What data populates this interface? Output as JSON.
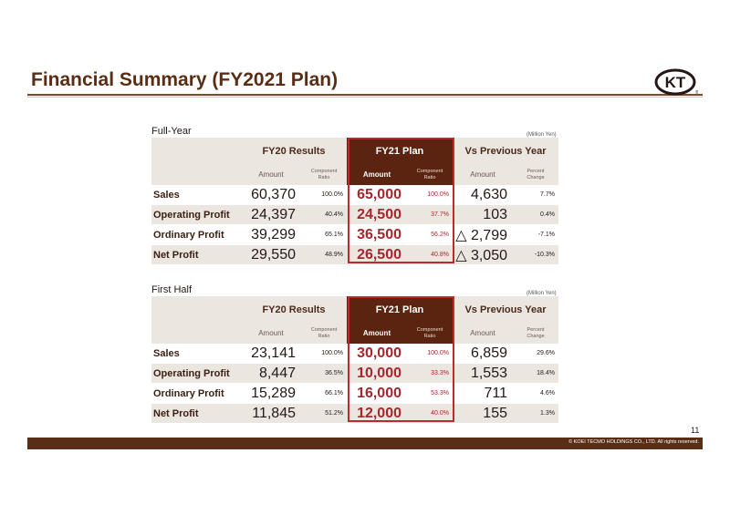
{
  "title": "Financial Summary (FY2021 Plan)",
  "logo_text": "KT",
  "page_number": "11",
  "footer": "© KOEI TECMO HOLDINGS CO., LTD. All rights reserved.",
  "colors": {
    "brand_brown": "#5a2e14",
    "plan_red": "#a6262e",
    "frame_red": "#c0282f",
    "header_shade": "#ece6e1"
  },
  "full_year": {
    "label": "Full-Year",
    "unit": "(Million Yen)",
    "groups": {
      "fy20": "FY20 Results",
      "fy21": "FY21 Plan",
      "vs": "Vs Previous Year"
    },
    "subs": {
      "amount": "Amount",
      "ratio_1": "Component",
      "ratio_2": "Ratio",
      "pct_1": "Percent",
      "pct_2": "Change"
    },
    "rows": [
      {
        "label": "Sales",
        "fy20_amount": "60,370",
        "fy20_ratio": "100.0%",
        "fy21_amount": "65,000",
        "fy21_ratio": "100.0%",
        "vs_amount": "4,630",
        "vs_pct": "7.7%"
      },
      {
        "label": "Operating Profit",
        "fy20_amount": "24,397",
        "fy20_ratio": "40.4%",
        "fy21_amount": "24,500",
        "fy21_ratio": "37.7%",
        "vs_amount": "103",
        "vs_pct": "0.4%"
      },
      {
        "label": "Ordinary Profit",
        "fy20_amount": "39,299",
        "fy20_ratio": "65.1%",
        "fy21_amount": "36,500",
        "fy21_ratio": "56.2%",
        "vs_amount": "△ 2,799",
        "vs_pct": "-7.1%"
      },
      {
        "label": "Net Profit",
        "fy20_amount": "29,550",
        "fy20_ratio": "48.9%",
        "fy21_amount": "26,500",
        "fy21_ratio": "40.8%",
        "vs_amount": "△ 3,050",
        "vs_pct": "-10.3%"
      }
    ]
  },
  "first_half": {
    "label": "First Half",
    "unit": "(Million Yen)",
    "groups": {
      "fy20": "FY20 Results",
      "fy21": "FY21 Plan",
      "vs": "Vs Previous Year"
    },
    "subs": {
      "amount": "Amount",
      "ratio_1": "Component",
      "ratio_2": "Ratio",
      "pct_1": "Percent",
      "pct_2": "Change"
    },
    "rows": [
      {
        "label": "Sales",
        "fy20_amount": "23,141",
        "fy20_ratio": "100.0%",
        "fy21_amount": "30,000",
        "fy21_ratio": "100.0%",
        "vs_amount": "6,859",
        "vs_pct": "29.6%"
      },
      {
        "label": "Operating Profit",
        "fy20_amount": "8,447",
        "fy20_ratio": "36.5%",
        "fy21_amount": "10,000",
        "fy21_ratio": "33.3%",
        "vs_amount": "1,553",
        "vs_pct": "18.4%"
      },
      {
        "label": "Ordinary Profit",
        "fy20_amount": "15,289",
        "fy20_ratio": "66.1%",
        "fy21_amount": "16,000",
        "fy21_ratio": "53.3%",
        "vs_amount": "711",
        "vs_pct": "4.6%"
      },
      {
        "label": "Net Profit",
        "fy20_amount": "11,845",
        "fy20_ratio": "51.2%",
        "fy21_amount": "12,000",
        "fy21_ratio": "40.0%",
        "vs_amount": "155",
        "vs_pct": "1.3%"
      }
    ]
  }
}
